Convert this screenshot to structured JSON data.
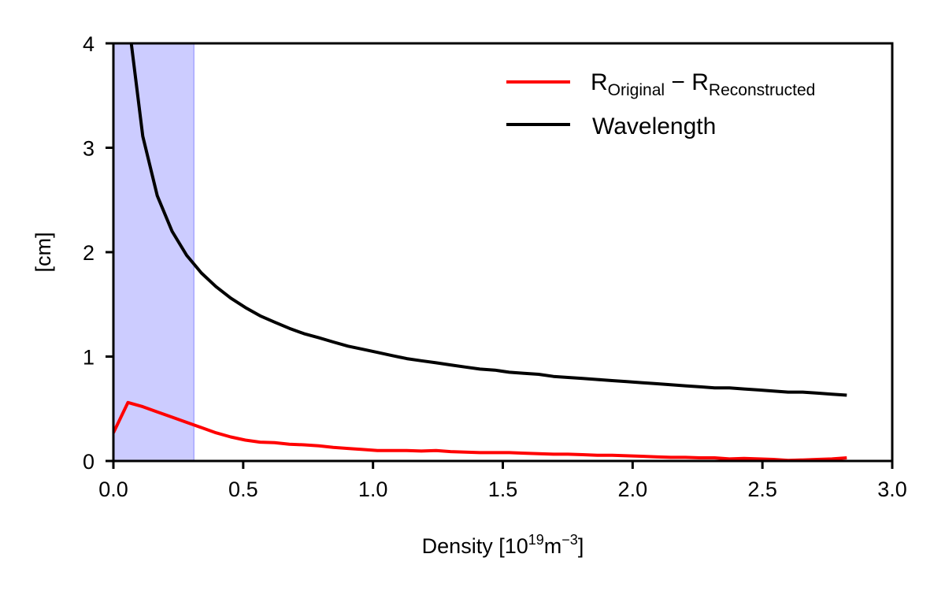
{
  "chart_data": {
    "type": "line",
    "title": "",
    "xlabel": "Density",
    "xlabel_unit_parts": {
      "open": " [10",
      "sup": "19",
      "mid": "m",
      "sup2": "−3",
      "close": "]"
    },
    "ylabel": "[cm]",
    "xlim": [
      0.0,
      3.0
    ],
    "ylim": [
      0,
      4
    ],
    "x_ticks": [
      "0.0",
      "0.5",
      "1.0",
      "1.5",
      "2.0",
      "2.5",
      "3.0"
    ],
    "y_ticks": [
      "0",
      "1",
      "2",
      "3",
      "4"
    ],
    "grid": false,
    "legend_position": "top-right",
    "shaded_region": {
      "x_start": 0.0,
      "x_end": 0.31,
      "color": "#ccccff"
    },
    "series": [
      {
        "name_parts": {
          "base1": "R",
          "sub1": "Original",
          "op": " − ",
          "base2": "R",
          "sub2": "Reconstructed"
        },
        "color": "#ff0000",
        "x": [
          0.0,
          0.056,
          0.113,
          0.169,
          0.226,
          0.282,
          0.339,
          0.395,
          0.452,
          0.508,
          0.565,
          0.621,
          0.678,
          0.734,
          0.791,
          0.847,
          0.904,
          0.96,
          1.017,
          1.073,
          1.13,
          1.186,
          1.243,
          1.299,
          1.356,
          1.412,
          1.469,
          1.525,
          1.582,
          1.638,
          1.695,
          1.751,
          1.808,
          1.864,
          1.921,
          1.977,
          2.034,
          2.09,
          2.147,
          2.203,
          2.26,
          2.316,
          2.373,
          2.429,
          2.486,
          2.542,
          2.599,
          2.655,
          2.712,
          2.768,
          2.825
        ],
        "y": [
          0.27,
          0.56,
          0.52,
          0.47,
          0.42,
          0.37,
          0.32,
          0.27,
          0.23,
          0.2,
          0.18,
          0.175,
          0.16,
          0.155,
          0.145,
          0.13,
          0.12,
          0.11,
          0.1,
          0.1,
          0.1,
          0.095,
          0.1,
          0.09,
          0.085,
          0.08,
          0.08,
          0.08,
          0.075,
          0.07,
          0.065,
          0.065,
          0.06,
          0.055,
          0.055,
          0.05,
          0.045,
          0.04,
          0.035,
          0.035,
          0.03,
          0.03,
          0.02,
          0.025,
          0.02,
          0.015,
          0.005,
          0.01,
          0.015,
          0.02,
          0.03
        ]
      },
      {
        "name_parts": {
          "label": "Wavelength"
        },
        "color": "#000000",
        "x": [
          0.069,
          0.113,
          0.169,
          0.226,
          0.282,
          0.339,
          0.395,
          0.452,
          0.508,
          0.565,
          0.621,
          0.678,
          0.734,
          0.791,
          0.847,
          0.904,
          0.96,
          1.017,
          1.073,
          1.13,
          1.186,
          1.243,
          1.299,
          1.356,
          1.412,
          1.469,
          1.525,
          1.582,
          1.638,
          1.695,
          1.751,
          1.808,
          1.864,
          1.921,
          1.977,
          2.034,
          2.09,
          2.147,
          2.203,
          2.26,
          2.316,
          2.373,
          2.429,
          2.486,
          2.542,
          2.599,
          2.655,
          2.712,
          2.768,
          2.825
        ],
        "y": [
          4.0,
          3.11,
          2.54,
          2.2,
          1.97,
          1.8,
          1.67,
          1.56,
          1.47,
          1.39,
          1.33,
          1.27,
          1.22,
          1.18,
          1.14,
          1.1,
          1.07,
          1.04,
          1.01,
          0.98,
          0.96,
          0.94,
          0.92,
          0.9,
          0.88,
          0.87,
          0.85,
          0.84,
          0.83,
          0.81,
          0.8,
          0.79,
          0.78,
          0.77,
          0.76,
          0.75,
          0.74,
          0.73,
          0.72,
          0.71,
          0.7,
          0.7,
          0.69,
          0.68,
          0.67,
          0.66,
          0.66,
          0.65,
          0.64,
          0.63
        ]
      }
    ]
  }
}
